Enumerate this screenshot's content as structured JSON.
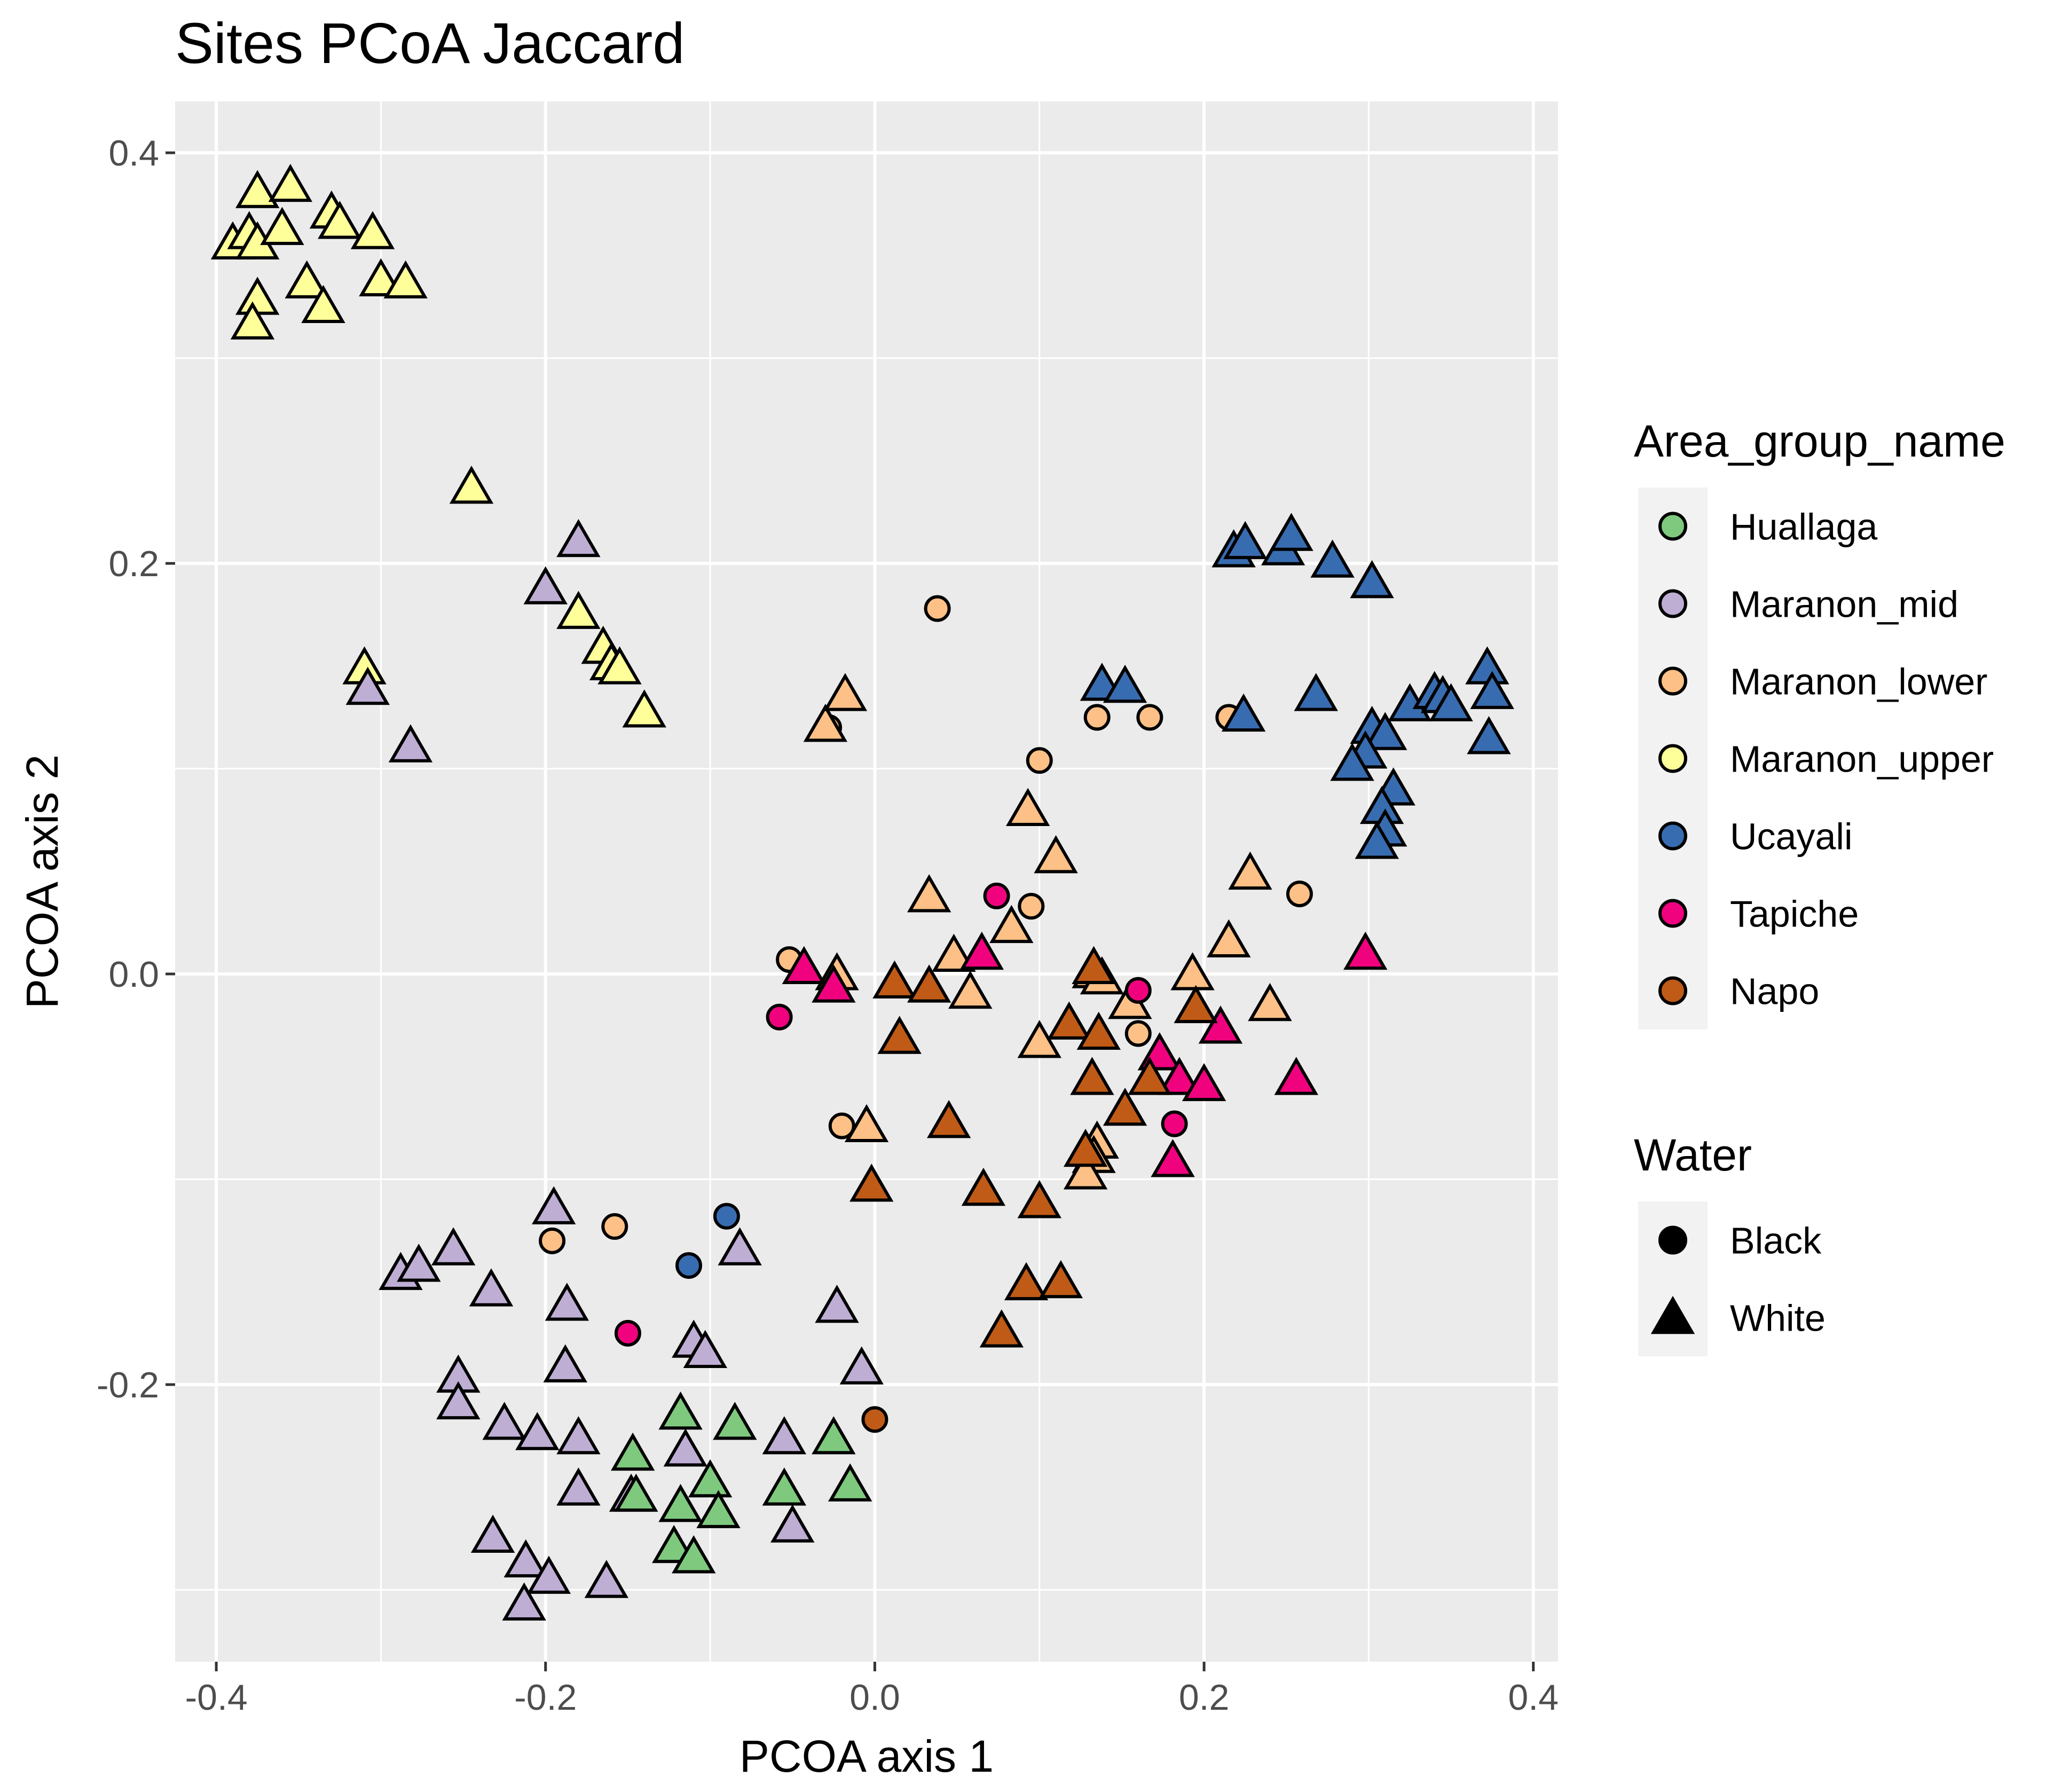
{
  "chart_data": {
    "type": "scatter",
    "title": "Sites PCoA Jaccard",
    "xlabel": "PCOA axis 1",
    "ylabel": "PCOA axis 2",
    "xlim": [
      -0.425,
      0.415
    ],
    "ylim": [
      -0.335,
      0.425
    ],
    "x_ticks": [
      -0.4,
      -0.2,
      0.0,
      0.2,
      0.4
    ],
    "x_tick_labels": [
      "-0.4",
      "-0.2",
      "0.0",
      "0.2",
      "0.4"
    ],
    "y_ticks": [
      -0.2,
      0.0,
      0.2,
      0.4
    ],
    "y_tick_labels": [
      "-0.2",
      "0.0",
      "0.2",
      "0.4"
    ],
    "grid": true,
    "background": "#ebebeb",
    "legend_position": "right",
    "legends": [
      {
        "title": "Area_group_name",
        "items": [
          {
            "label": "Huallaga",
            "color": "#7fc97f"
          },
          {
            "label": "Maranon_mid",
            "color": "#beaed4"
          },
          {
            "label": "Maranon_lower",
            "color": "#fdc086"
          },
          {
            "label": "Maranon_upper",
            "color": "#ffff99"
          },
          {
            "label": "Ucayali",
            "color": "#386cb0"
          },
          {
            "label": "Tapiche",
            "color": "#f0027f"
          },
          {
            "label": "Napo",
            "color": "#bf5b17"
          }
        ]
      },
      {
        "title": "Water",
        "items": [
          {
            "label": "Black",
            "shape": "circle"
          },
          {
            "label": "White",
            "shape": "triangle"
          }
        ]
      }
    ],
    "series": [
      {
        "name": "Maranon_upper",
        "color": "#ffff99",
        "points": [
          {
            "x": -0.39,
            "y": 0.355,
            "water": "White"
          },
          {
            "x": -0.38,
            "y": 0.36,
            "water": "White"
          },
          {
            "x": -0.375,
            "y": 0.355,
            "water": "White"
          },
          {
            "x": -0.375,
            "y": 0.38,
            "water": "White"
          },
          {
            "x": -0.355,
            "y": 0.383,
            "water": "White"
          },
          {
            "x": -0.36,
            "y": 0.362,
            "water": "White"
          },
          {
            "x": -0.33,
            "y": 0.37,
            "water": "White"
          },
          {
            "x": -0.325,
            "y": 0.365,
            "water": "White"
          },
          {
            "x": -0.305,
            "y": 0.36,
            "water": "White"
          },
          {
            "x": -0.375,
            "y": 0.328,
            "water": "White"
          },
          {
            "x": -0.378,
            "y": 0.316,
            "water": "White"
          },
          {
            "x": -0.345,
            "y": 0.336,
            "water": "White"
          },
          {
            "x": -0.335,
            "y": 0.324,
            "water": "White"
          },
          {
            "x": -0.3,
            "y": 0.337,
            "water": "White"
          },
          {
            "x": -0.285,
            "y": 0.336,
            "water": "White"
          },
          {
            "x": -0.245,
            "y": 0.236,
            "water": "White"
          },
          {
            "x": -0.31,
            "y": 0.148,
            "water": "White"
          },
          {
            "x": -0.18,
            "y": 0.175,
            "water": "White"
          },
          {
            "x": -0.165,
            "y": 0.158,
            "water": "White"
          },
          {
            "x": -0.16,
            "y": 0.15,
            "water": "White"
          },
          {
            "x": -0.155,
            "y": 0.148,
            "water": "White"
          },
          {
            "x": -0.14,
            "y": 0.127,
            "water": "White"
          }
        ]
      },
      {
        "name": "Maranon_mid",
        "color": "#beaed4",
        "points": [
          {
            "x": -0.18,
            "y": 0.21,
            "water": "White"
          },
          {
            "x": -0.2,
            "y": 0.187,
            "water": "White"
          },
          {
            "x": -0.308,
            "y": 0.138,
            "water": "White"
          },
          {
            "x": -0.282,
            "y": 0.11,
            "water": "White"
          },
          {
            "x": -0.195,
            "y": -0.115,
            "water": "White"
          },
          {
            "x": -0.288,
            "y": -0.147,
            "water": "White"
          },
          {
            "x": -0.277,
            "y": -0.143,
            "water": "White"
          },
          {
            "x": -0.256,
            "y": -0.135,
            "water": "White"
          },
          {
            "x": -0.233,
            "y": -0.155,
            "water": "White"
          },
          {
            "x": -0.187,
            "y": -0.162,
            "water": "White"
          },
          {
            "x": -0.082,
            "y": -0.135,
            "water": "White"
          },
          {
            "x": -0.023,
            "y": -0.163,
            "water": "White"
          },
          {
            "x": -0.11,
            "y": -0.18,
            "water": "White"
          },
          {
            "x": -0.103,
            "y": -0.185,
            "water": "White"
          },
          {
            "x": -0.188,
            "y": -0.192,
            "water": "White"
          },
          {
            "x": -0.253,
            "y": -0.197,
            "water": "White"
          },
          {
            "x": -0.253,
            "y": -0.21,
            "water": "White"
          },
          {
            "x": -0.008,
            "y": -0.193,
            "water": "White"
          },
          {
            "x": -0.225,
            "y": -0.22,
            "water": "White"
          },
          {
            "x": -0.205,
            "y": -0.225,
            "water": "White"
          },
          {
            "x": -0.18,
            "y": -0.227,
            "water": "White"
          },
          {
            "x": -0.055,
            "y": -0.227,
            "water": "White"
          },
          {
            "x": -0.115,
            "y": -0.233,
            "water": "White"
          },
          {
            "x": -0.18,
            "y": -0.252,
            "water": "White"
          },
          {
            "x": -0.148,
            "y": -0.255,
            "water": "White"
          },
          {
            "x": -0.05,
            "y": -0.27,
            "water": "White"
          },
          {
            "x": -0.232,
            "y": -0.275,
            "water": "White"
          },
          {
            "x": -0.212,
            "y": -0.287,
            "water": "White"
          },
          {
            "x": -0.198,
            "y": -0.295,
            "water": "White"
          },
          {
            "x": -0.163,
            "y": -0.297,
            "water": "White"
          },
          {
            "x": -0.213,
            "y": -0.308,
            "water": "White"
          }
        ]
      },
      {
        "name": "Huallaga",
        "color": "#7fc97f",
        "points": [
          {
            "x": -0.147,
            "y": -0.235,
            "water": "White"
          },
          {
            "x": -0.118,
            "y": -0.215,
            "water": "White"
          },
          {
            "x": -0.085,
            "y": -0.22,
            "water": "White"
          },
          {
            "x": -0.025,
            "y": -0.227,
            "water": "White"
          },
          {
            "x": -0.1,
            "y": -0.248,
            "water": "White"
          },
          {
            "x": -0.055,
            "y": -0.252,
            "water": "White"
          },
          {
            "x": -0.015,
            "y": -0.25,
            "water": "White"
          },
          {
            "x": -0.145,
            "y": -0.255,
            "water": "White"
          },
          {
            "x": -0.118,
            "y": -0.26,
            "water": "White"
          },
          {
            "x": -0.095,
            "y": -0.263,
            "water": "White"
          },
          {
            "x": -0.122,
            "y": -0.28,
            "water": "White"
          },
          {
            "x": -0.11,
            "y": -0.285,
            "water": "White"
          }
        ]
      },
      {
        "name": "Maranon_lower",
        "color": "#fdc086",
        "points": [
          {
            "x": 0.038,
            "y": 0.178,
            "water": "Black"
          },
          {
            "x": -0.028,
            "y": 0.12,
            "water": "Black"
          },
          {
            "x": 0.135,
            "y": 0.125,
            "water": "Black"
          },
          {
            "x": 0.167,
            "y": 0.125,
            "water": "Black"
          },
          {
            "x": 0.215,
            "y": 0.125,
            "water": "Black"
          },
          {
            "x": 0.1,
            "y": 0.104,
            "water": "Black"
          },
          {
            "x": 0.095,
            "y": 0.033,
            "water": "Black"
          },
          {
            "x": 0.258,
            "y": 0.039,
            "water": "Black"
          },
          {
            "x": -0.052,
            "y": 0.007,
            "water": "Black"
          },
          {
            "x": 0.16,
            "y": -0.029,
            "water": "Black"
          },
          {
            "x": -0.02,
            "y": -0.074,
            "water": "Black"
          },
          {
            "x": -0.196,
            "y": -0.13,
            "water": "Black"
          },
          {
            "x": -0.158,
            "y": -0.123,
            "water": "Black"
          },
          {
            "x": -0.03,
            "y": 0.12,
            "water": "White"
          },
          {
            "x": -0.018,
            "y": 0.135,
            "water": "White"
          },
          {
            "x": 0.093,
            "y": 0.079,
            "water": "White"
          },
          {
            "x": 0.11,
            "y": 0.056,
            "water": "White"
          },
          {
            "x": 0.228,
            "y": 0.048,
            "water": "White"
          },
          {
            "x": 0.033,
            "y": 0.037,
            "water": "White"
          },
          {
            "x": 0.083,
            "y": 0.022,
            "water": "White"
          },
          {
            "x": 0.215,
            "y": 0.015,
            "water": "White"
          },
          {
            "x": 0.048,
            "y": 0.008,
            "water": "White"
          },
          {
            "x": -0.023,
            "y": -0.001,
            "water": "White"
          },
          {
            "x": 0.058,
            "y": -0.01,
            "water": "White"
          },
          {
            "x": 0.133,
            "y": 0.0,
            "water": "White"
          },
          {
            "x": 0.138,
            "y": -0.003,
            "water": "White"
          },
          {
            "x": 0.193,
            "y": -0.001,
            "water": "White"
          },
          {
            "x": 0.155,
            "y": -0.015,
            "water": "White"
          },
          {
            "x": 0.24,
            "y": -0.016,
            "water": "White"
          },
          {
            "x": 0.1,
            "y": -0.034,
            "water": "White"
          },
          {
            "x": -0.005,
            "y": -0.075,
            "water": "White"
          },
          {
            "x": 0.135,
            "y": -0.083,
            "water": "White"
          },
          {
            "x": 0.133,
            "y": -0.09,
            "water": "White"
          },
          {
            "x": 0.128,
            "y": -0.098,
            "water": "White"
          }
        ]
      },
      {
        "name": "Ucayali",
        "color": "#386cb0",
        "points": [
          {
            "x": -0.09,
            "y": -0.118,
            "water": "Black"
          },
          {
            "x": -0.113,
            "y": -0.142,
            "water": "Black"
          },
          {
            "x": 0.218,
            "y": 0.205,
            "water": "White"
          },
          {
            "x": 0.225,
            "y": 0.209,
            "water": "White"
          },
          {
            "x": 0.248,
            "y": 0.206,
            "water": "White"
          },
          {
            "x": 0.253,
            "y": 0.213,
            "water": "White"
          },
          {
            "x": 0.278,
            "y": 0.2,
            "water": "White"
          },
          {
            "x": 0.302,
            "y": 0.19,
            "water": "White"
          },
          {
            "x": 0.138,
            "y": 0.14,
            "water": "White"
          },
          {
            "x": 0.152,
            "y": 0.139,
            "water": "White"
          },
          {
            "x": 0.224,
            "y": 0.125,
            "water": "White"
          },
          {
            "x": 0.268,
            "y": 0.135,
            "water": "White"
          },
          {
            "x": 0.325,
            "y": 0.13,
            "water": "White"
          },
          {
            "x": 0.34,
            "y": 0.136,
            "water": "White"
          },
          {
            "x": 0.345,
            "y": 0.134,
            "water": "White"
          },
          {
            "x": 0.35,
            "y": 0.13,
            "water": "White"
          },
          {
            "x": 0.372,
            "y": 0.148,
            "water": "White"
          },
          {
            "x": 0.375,
            "y": 0.136,
            "water": "White"
          },
          {
            "x": 0.373,
            "y": 0.114,
            "water": "White"
          },
          {
            "x": 0.302,
            "y": 0.119,
            "water": "White"
          },
          {
            "x": 0.31,
            "y": 0.116,
            "water": "White"
          },
          {
            "x": 0.298,
            "y": 0.107,
            "water": "White"
          },
          {
            "x": 0.29,
            "y": 0.101,
            "water": "White"
          },
          {
            "x": 0.315,
            "y": 0.089,
            "water": "White"
          },
          {
            "x": 0.308,
            "y": 0.08,
            "water": "White"
          },
          {
            "x": 0.31,
            "y": 0.069,
            "water": "White"
          },
          {
            "x": 0.305,
            "y": 0.063,
            "water": "White"
          }
        ]
      },
      {
        "name": "Tapiche",
        "color": "#f0027f",
        "points": [
          {
            "x": 0.074,
            "y": 0.038,
            "water": "Black"
          },
          {
            "x": -0.058,
            "y": -0.021,
            "water": "Black"
          },
          {
            "x": 0.16,
            "y": -0.008,
            "water": "Black"
          },
          {
            "x": 0.182,
            "y": -0.073,
            "water": "Black"
          },
          {
            "x": -0.15,
            "y": -0.175,
            "water": "Black"
          },
          {
            "x": -0.043,
            "y": 0.002,
            "water": "White"
          },
          {
            "x": -0.025,
            "y": -0.007,
            "water": "White"
          },
          {
            "x": 0.065,
            "y": 0.009,
            "water": "White"
          },
          {
            "x": 0.298,
            "y": 0.009,
            "water": "White"
          },
          {
            "x": 0.21,
            "y": -0.027,
            "water": "White"
          },
          {
            "x": 0.173,
            "y": -0.04,
            "water": "White"
          },
          {
            "x": 0.185,
            "y": -0.052,
            "water": "White"
          },
          {
            "x": 0.2,
            "y": -0.055,
            "water": "White"
          },
          {
            "x": 0.256,
            "y": -0.052,
            "water": "White"
          },
          {
            "x": 0.181,
            "y": -0.092,
            "water": "White"
          }
        ]
      },
      {
        "name": "Napo",
        "color": "#bf5b17",
        "points": [
          {
            "x": 0.0,
            "y": -0.217,
            "water": "Black"
          },
          {
            "x": 0.012,
            "y": -0.005,
            "water": "White"
          },
          {
            "x": 0.033,
            "y": -0.007,
            "water": "White"
          },
          {
            "x": 0.133,
            "y": 0.002,
            "water": "White"
          },
          {
            "x": 0.195,
            "y": -0.017,
            "water": "White"
          },
          {
            "x": 0.118,
            "y": -0.025,
            "water": "White"
          },
          {
            "x": 0.136,
            "y": -0.03,
            "water": "White"
          },
          {
            "x": 0.015,
            "y": -0.032,
            "water": "White"
          },
          {
            "x": 0.132,
            "y": -0.052,
            "water": "White"
          },
          {
            "x": 0.167,
            "y": -0.052,
            "water": "White"
          },
          {
            "x": 0.152,
            "y": -0.067,
            "water": "White"
          },
          {
            "x": 0.045,
            "y": -0.073,
            "water": "White"
          },
          {
            "x": 0.128,
            "y": -0.087,
            "water": "White"
          },
          {
            "x": -0.002,
            "y": -0.104,
            "water": "White"
          },
          {
            "x": 0.066,
            "y": -0.106,
            "water": "White"
          },
          {
            "x": 0.1,
            "y": -0.112,
            "water": "White"
          },
          {
            "x": 0.092,
            "y": -0.152,
            "water": "White"
          },
          {
            "x": 0.113,
            "y": -0.151,
            "water": "White"
          },
          {
            "x": 0.077,
            "y": -0.175,
            "water": "White"
          }
        ]
      }
    ]
  }
}
